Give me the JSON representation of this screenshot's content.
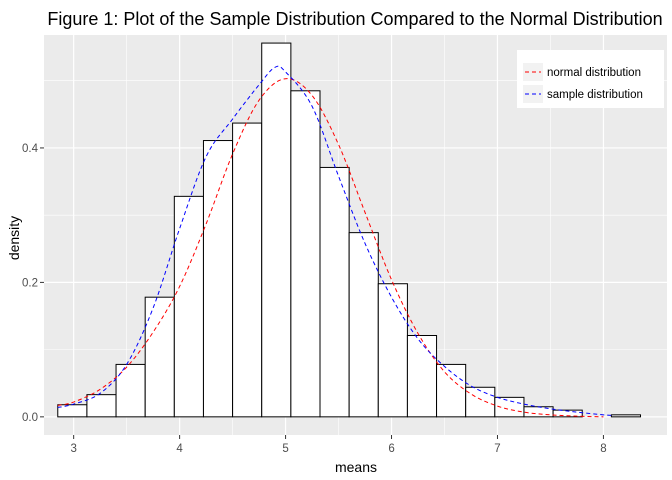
{
  "chart_data": {
    "type": "bar",
    "title": "Figure 1: Plot of the Sample Distribution Compared to the Normal Distribution",
    "xlabel": "means",
    "ylabel": "density",
    "xlim": [
      2.72,
      8.6
    ],
    "ylim": [
      -0.027,
      0.568
    ],
    "x_ticks": [
      3,
      4,
      5,
      6,
      7,
      8
    ],
    "x_tick_labels": [
      "3",
      "4",
      "5",
      "6",
      "7",
      "8"
    ],
    "y_ticks": [
      0.0,
      0.2,
      0.4
    ],
    "y_tick_labels": [
      "0.0",
      "0.2",
      "0.4"
    ],
    "grid": true,
    "legend_position": "top-right",
    "colors": {
      "panel_background": "#ebebeb",
      "grid": "#ffffff",
      "bar_fill": "#ffffff",
      "bar_outline": "#000000",
      "normal_distribution": "#ff0000",
      "sample_distribution": "#0000ff"
    },
    "histogram": {
      "bin_width": 0.275,
      "bin_starts": [
        2.85,
        3.125,
        3.4,
        3.675,
        3.95,
        4.225,
        4.5,
        4.775,
        5.05,
        5.325,
        5.6,
        5.875,
        6.15,
        6.425,
        6.7,
        6.975,
        7.25,
        7.525,
        7.8,
        8.075
      ],
      "densities": [
        0.018,
        0.033,
        0.078,
        0.178,
        0.328,
        0.411,
        0.437,
        0.556,
        0.485,
        0.371,
        0.274,
        0.198,
        0.121,
        0.078,
        0.044,
        0.029,
        0.015,
        0.01,
        0.0,
        0.003
      ]
    },
    "series": [
      {
        "name": "normal distribution",
        "x": [
          2.85,
          3.0,
          3.25,
          3.5,
          3.75,
          4.0,
          4.25,
          4.5,
          4.75,
          5.0,
          5.25,
          5.5,
          5.75,
          6.0,
          6.25,
          6.5,
          6.75,
          7.0,
          7.25,
          7.5,
          7.75,
          8.0
        ],
        "y": [
          0.017,
          0.022,
          0.041,
          0.074,
          0.126,
          0.194,
          0.287,
          0.391,
          0.471,
          0.503,
          0.478,
          0.405,
          0.304,
          0.204,
          0.124,
          0.067,
          0.034,
          0.016,
          0.007,
          0.003,
          0.001,
          0.0
        ]
      },
      {
        "name": "sample distribution",
        "x": [
          2.85,
          3.0,
          3.25,
          3.5,
          3.75,
          4.0,
          4.25,
          4.5,
          4.75,
          4.9,
          5.0,
          5.25,
          5.5,
          5.75,
          6.0,
          6.25,
          6.5,
          6.75,
          7.0,
          7.25,
          7.5,
          7.75,
          8.0,
          8.1
        ],
        "y": [
          0.014,
          0.019,
          0.035,
          0.078,
          0.162,
          0.28,
          0.387,
          0.443,
          0.494,
          0.52,
          0.513,
          0.462,
          0.358,
          0.258,
          0.178,
          0.116,
          0.075,
          0.046,
          0.029,
          0.019,
          0.012,
          0.007,
          0.003,
          0.002
        ]
      }
    ]
  }
}
